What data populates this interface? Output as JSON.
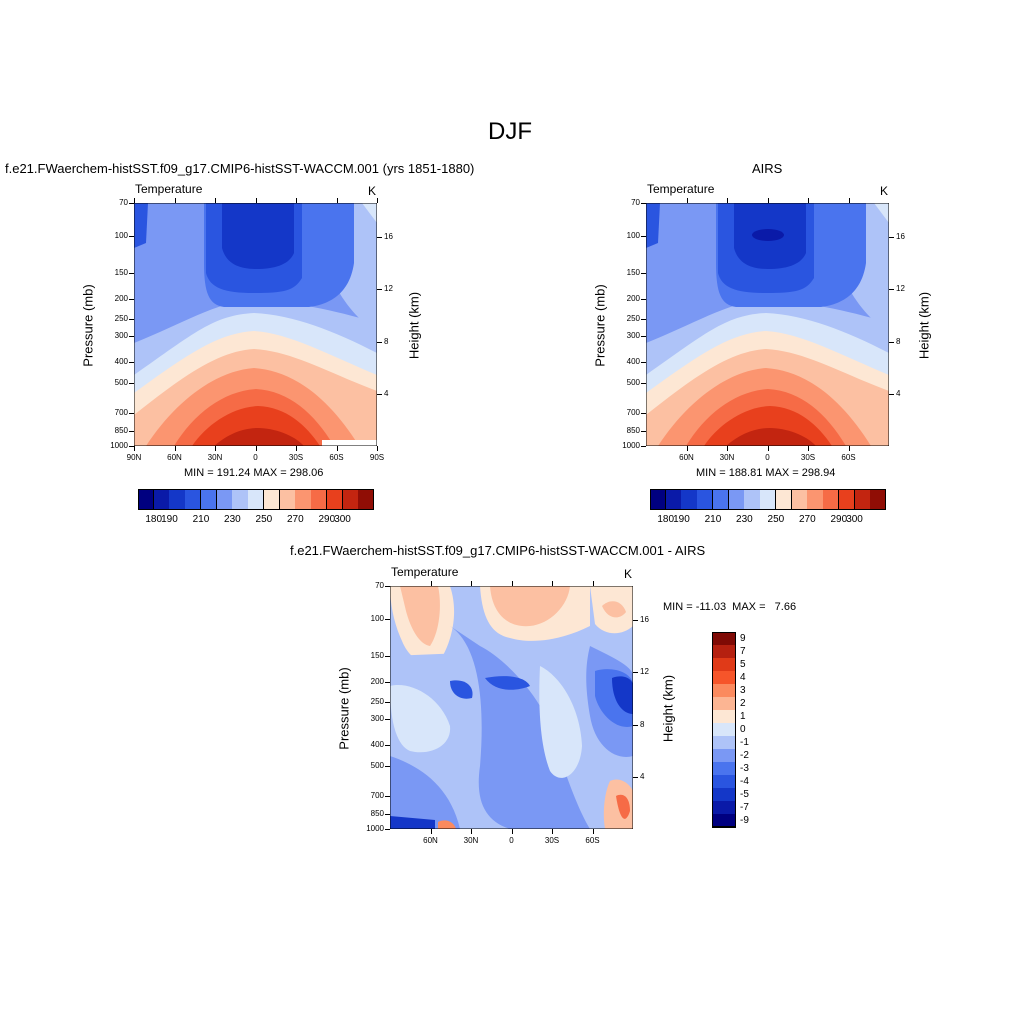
{
  "figure": {
    "title": "DJF",
    "panel1_title": "f.e21.FWaerchem-histSST.f09_g17.CMIP6-histSST-WACCM.001 (yrs 1851-1880)",
    "panel2_title": "AIRS",
    "panel3_title": "f.e21.FWaerchem-histSST.f09_g17.CMIP6-histSST-WACCM.001 - AIRS"
  },
  "chart_data": [
    {
      "type": "heatmap",
      "title": "f.e21.FWaerchem-histSST.f09_g17.CMIP6-histSST-WACCM.001 (yrs 1851-1880)",
      "left_label": "Temperature",
      "right_label": "K",
      "ylabel": "Pressure (mb)",
      "ylabel_right": "Height (km)",
      "xticks": [
        "90N",
        "60N",
        "30N",
        "0",
        "30S",
        "60S",
        "90S"
      ],
      "yticks": [
        "70",
        "100",
        "150",
        "200",
        "250",
        "300",
        "400",
        "500",
        "700",
        "850",
        "1000"
      ],
      "yticks_right": [
        "4",
        "8",
        "12",
        "16"
      ],
      "stats": "MIN = 191.24  MAX = 298.06",
      "colorbar_labels": [
        "180",
        "190",
        "210",
        "230",
        "250",
        "270",
        "290",
        "300"
      ],
      "colorbar_levels": [
        180,
        190,
        200,
        210,
        220,
        230,
        240,
        250,
        260,
        270,
        280,
        290,
        300
      ],
      "min": 191.24,
      "max": 298.06
    },
    {
      "type": "heatmap",
      "title": "AIRS",
      "left_label": "Temperature",
      "right_label": "K",
      "ylabel": "Pressure (mb)",
      "ylabel_right": "Height (km)",
      "xticks": [
        "60N",
        "30N",
        "0",
        "30S",
        "60S"
      ],
      "yticks": [
        "70",
        "100",
        "150",
        "200",
        "250",
        "300",
        "400",
        "500",
        "700",
        "850",
        "1000"
      ],
      "yticks_right": [
        "4",
        "8",
        "12",
        "16"
      ],
      "stats": "MIN = 188.81  MAX = 298.94",
      "colorbar_labels": [
        "180",
        "190",
        "210",
        "230",
        "250",
        "270",
        "290",
        "300"
      ],
      "colorbar_levels": [
        180,
        190,
        200,
        210,
        220,
        230,
        240,
        250,
        260,
        270,
        280,
        290,
        300
      ],
      "min": 188.81,
      "max": 298.94
    },
    {
      "type": "heatmap",
      "title": "f.e21.FWaerchem-histSST.f09_g17.CMIP6-histSST-WACCM.001 - AIRS",
      "left_label": "Temperature",
      "right_label": "K",
      "ylabel": "Pressure (mb)",
      "ylabel_right": "Height (km)",
      "xticks": [
        "60N",
        "30N",
        "0",
        "30S",
        "60S"
      ],
      "yticks": [
        "70",
        "100",
        "150",
        "200",
        "250",
        "300",
        "400",
        "500",
        "700",
        "850",
        "1000"
      ],
      "yticks_right": [
        "4",
        "8",
        "12",
        "16"
      ],
      "stats": "MIN = -11.03  MAX =   7.66",
      "colorbar_labels": [
        "9",
        "7",
        "5",
        "4",
        "3",
        "2",
        "1",
        "0",
        "-1",
        "-2",
        "-3",
        "-4",
        "-5",
        "-7",
        "-9"
      ],
      "min": -11.03,
      "max": 7.66
    }
  ],
  "palette": {
    "temp": [
      "#000080",
      "#0a1aa8",
      "#1437c8",
      "#2a55e0",
      "#4a74ee",
      "#7a98f4",
      "#aec3f8",
      "#d8e6fa",
      "#fde7d4",
      "#fcc0a2",
      "#fb9570",
      "#f66b46",
      "#e8401d",
      "#c32510",
      "#900d05"
    ],
    "diff": [
      "#7f0a05",
      "#b52010",
      "#e03a18",
      "#f6552a",
      "#fb8a5e",
      "#fcb593",
      "#fde7d4",
      "#d8e6fa",
      "#aec3f8",
      "#7a98f4",
      "#4a74ee",
      "#2a55e0",
      "#1437c8",
      "#0a1aa8",
      "#000080"
    ]
  }
}
